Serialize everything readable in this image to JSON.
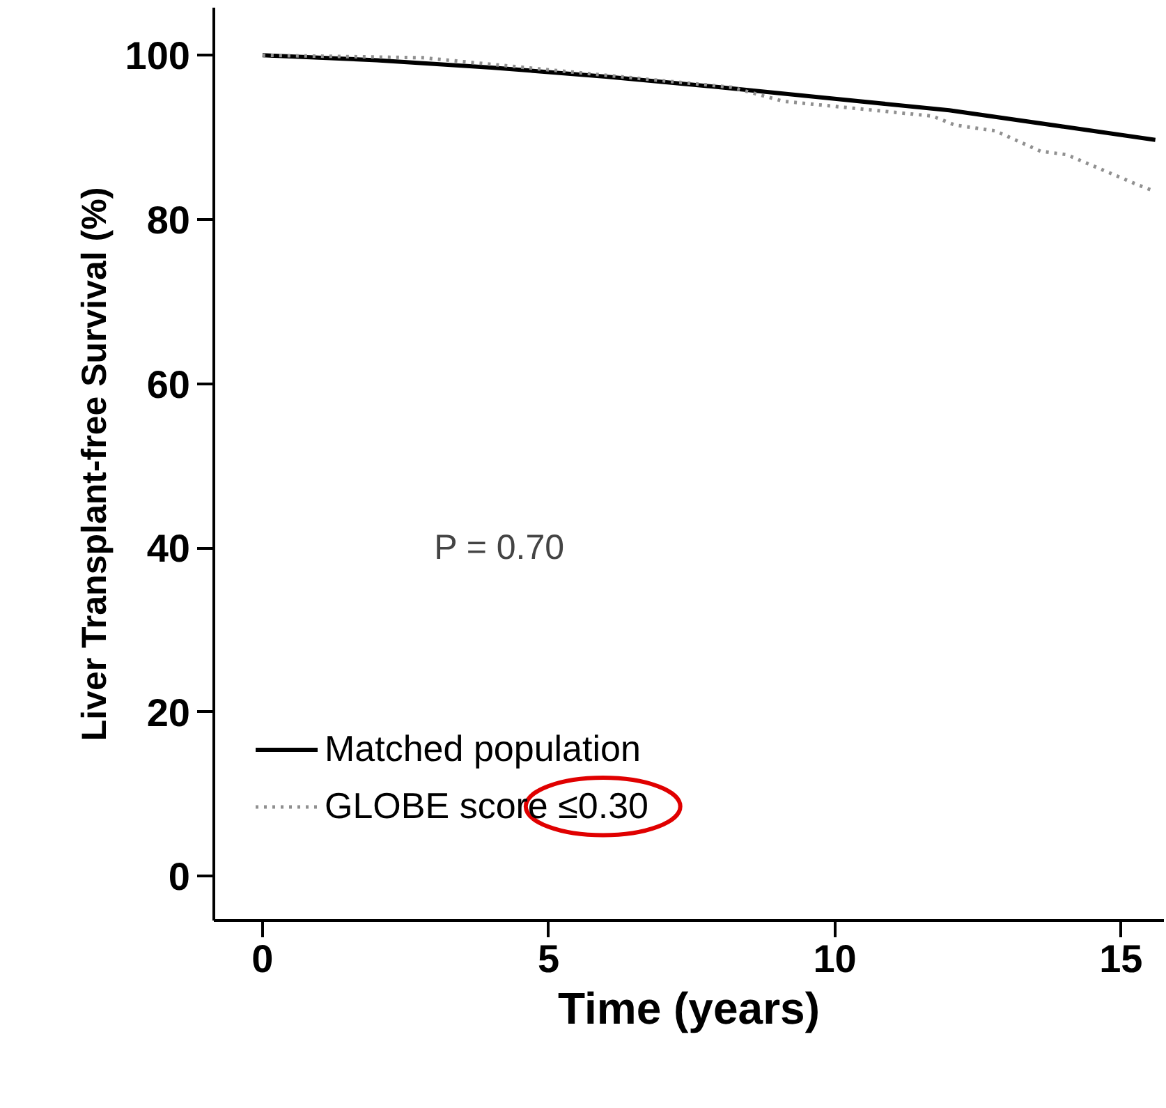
{
  "chart_data": {
    "type": "line",
    "xlabel": "Time (years)",
    "ylabel": "Liver Transplant-free Survival (%)",
    "xlim": [
      -0.85,
      15.75
    ],
    "ylim": [
      -5.4,
      105.8
    ],
    "xticks": [
      0,
      5,
      10,
      15
    ],
    "yticks": [
      0,
      20,
      40,
      60,
      80,
      100
    ],
    "grid": false,
    "legend": "bottom left",
    "annotations": [
      "P = 0.70"
    ],
    "series": [
      {
        "name": "Matched population",
        "color": "#000000",
        "line_style": "solid",
        "x": [
          0,
          2,
          4,
          6,
          8,
          10,
          12,
          14,
          15.6
        ],
        "values": [
          100,
          99.4,
          98.5,
          97.4,
          96.1,
          94.7,
          93.3,
          91.3,
          89.7
        ]
      },
      {
        "name": "GLOBE score ≤0.30",
        "color": "#909090",
        "line_style": "dotted",
        "x": [
          0,
          2.8,
          5.2,
          8.2,
          9.1,
          11.7,
          12.1,
          12.8,
          13.6,
          14.05,
          15.3,
          15.6
        ],
        "values": [
          100,
          99.7,
          98.1,
          96.1,
          94.4,
          92.6,
          91.5,
          90.8,
          88.3,
          87.9,
          84.2,
          83.4
        ]
      }
    ]
  }
}
